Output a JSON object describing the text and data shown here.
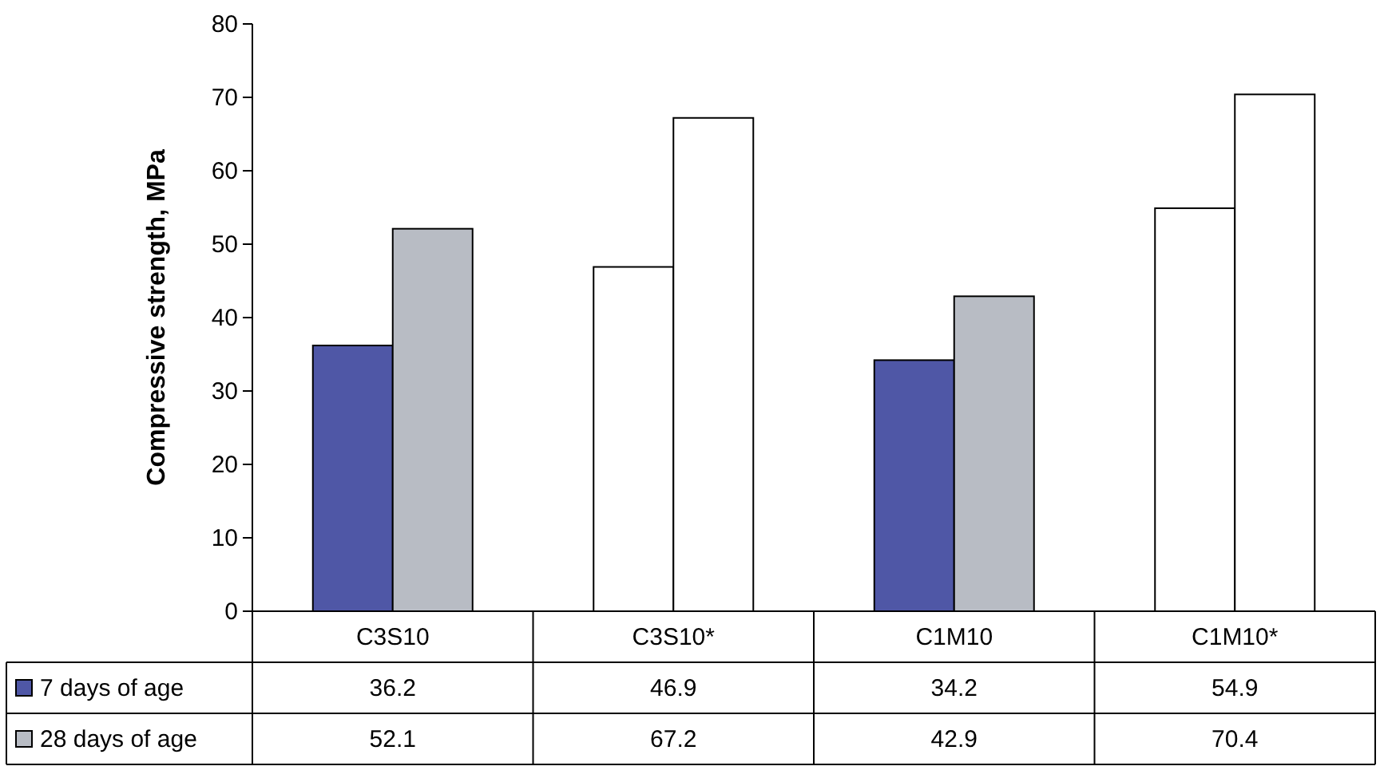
{
  "chart_data": {
    "type": "bar",
    "ylabel": "Compressive strength, MPa",
    "categories": [
      "C3S10",
      "C3S10*",
      "C1M10",
      "C1M10*"
    ],
    "series": [
      {
        "name": "7 days of age",
        "color": "#4f57a6",
        "colors": [
          "#4f57a6",
          "#ffffff",
          "#4f57a6",
          "#ffffff"
        ],
        "values": [
          36.2,
          46.9,
          34.2,
          54.9
        ]
      },
      {
        "name": "28 days of age",
        "color": "#b8bcc4",
        "colors": [
          "#b8bcc4",
          "#ffffff",
          "#b8bcc4",
          "#ffffff"
        ],
        "values": [
          52.1,
          67.2,
          42.9,
          70.4
        ]
      }
    ],
    "ylim": [
      0,
      80
    ],
    "yticks": [
      0,
      10,
      20,
      30,
      40,
      50,
      60,
      70,
      80
    ],
    "data_labels": true,
    "legend": "bottom left",
    "grid": false
  }
}
